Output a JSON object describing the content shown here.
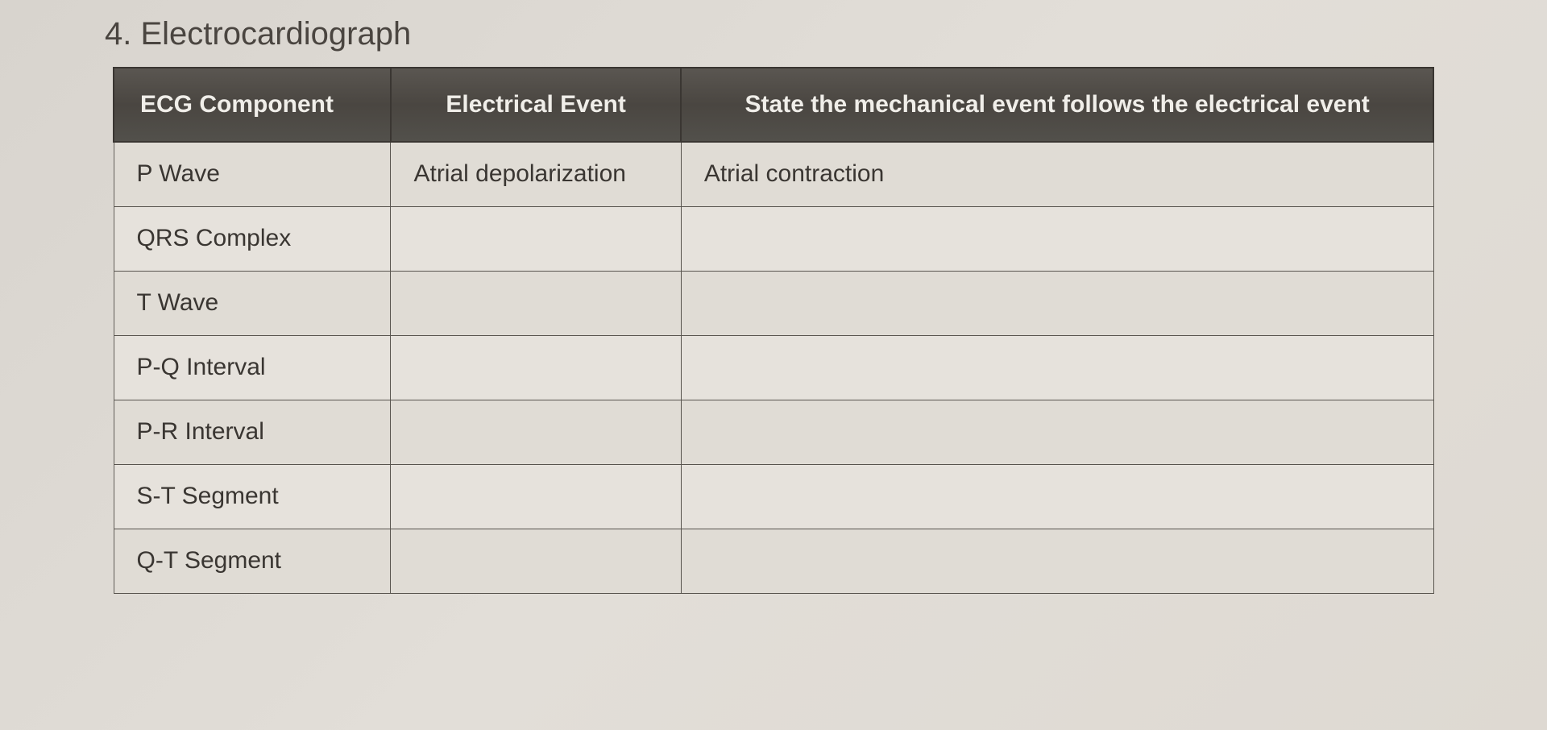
{
  "title": "4. Electrocardiograph",
  "table": {
    "columns": [
      "ECG Component",
      "Electrical Event",
      "State the mechanical event follows the electrical event"
    ],
    "column_widths_pct": [
      21,
      22,
      57
    ],
    "header_bg": "#4a4641",
    "header_color": "#f0eee9",
    "border_color": "#58544e",
    "row_bg_even": "#e6e2dc",
    "row_bg_odd": "#e0dcd5",
    "cell_fontsize": 30,
    "header_fontsize": 30,
    "rows": [
      {
        "component": "P Wave",
        "electrical": "Atrial depolarization",
        "mechanical": "Atrial contraction"
      },
      {
        "component": "QRS Complex",
        "electrical": "",
        "mechanical": ""
      },
      {
        "component": "T Wave",
        "electrical": "",
        "mechanical": ""
      },
      {
        "component": "P-Q  Interval",
        "electrical": "",
        "mechanical": ""
      },
      {
        "component": "P-R Interval",
        "electrical": "",
        "mechanical": ""
      },
      {
        "component": "S-T Segment",
        "electrical": "",
        "mechanical": ""
      },
      {
        "component": "Q-T Segment",
        "electrical": "",
        "mechanical": ""
      }
    ]
  },
  "page_background": "#ded9d2",
  "title_fontsize": 40,
  "title_color": "#4a4540"
}
